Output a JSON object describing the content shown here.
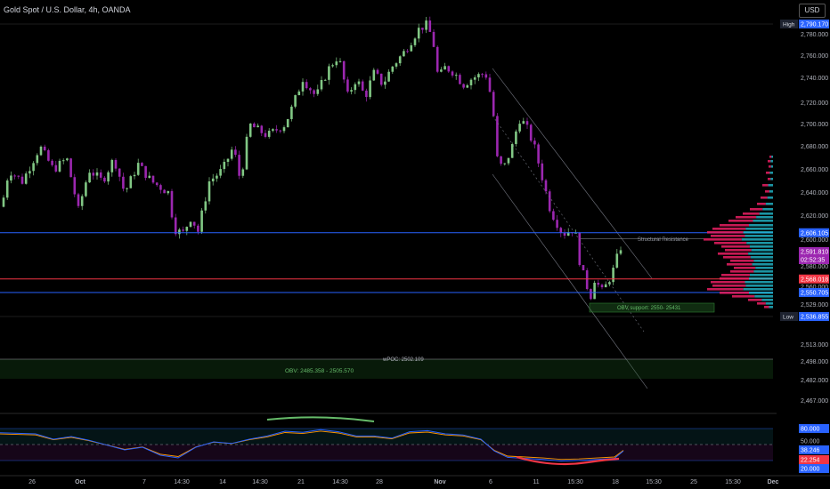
{
  "header": {
    "title": "Gold Spot / U.S. Dollar, 4h, OANDA",
    "currency_button": "USD"
  },
  "chart_data": {
    "type": "candlestick",
    "instrument": "Gold Spot / U.S. Dollar",
    "timeframe": "4h",
    "source": "OANDA",
    "price_axis": {
      "ticks": [
        2780,
        2760,
        2740,
        2720,
        2700,
        2680,
        2660,
        2640,
        2620,
        2600,
        2580,
        2560,
        2529,
        2513,
        2498,
        2482,
        2467
      ],
      "tick_labels": [
        "2,780.000",
        "2,760.000",
        "2,740.000",
        "2,720.000",
        "2,700.000",
        "2,680.000",
        "2,660.000",
        "2,640.000",
        "2,620.000",
        "2,600.000",
        "2,580.000",
        "2,560.000",
        "2,529.000",
        "2,513.000",
        "2,498.000",
        "2,482.000",
        "2,467.000"
      ]
    },
    "time_axis": {
      "labels": [
        "26",
        "Oct",
        "7",
        "14:30",
        "14",
        "14:30",
        "21",
        "14:30",
        "28",
        "Nov",
        "6",
        "11",
        "15:30",
        "18",
        "15:30",
        "25",
        "15:30",
        "Dec"
      ]
    },
    "price_labels": [
      {
        "text": "High",
        "value": "2,790.170",
        "color": "#2962ff",
        "type": "high"
      },
      {
        "text": "",
        "value": "2,606.105",
        "color": "#2962ff",
        "type": "level"
      },
      {
        "text": "",
        "value": "2,591.810",
        "color": "#9c27b0",
        "type": "last"
      },
      {
        "text": "",
        "value": "02:52:35",
        "color": "#9c27b0",
        "type": "countdown"
      },
      {
        "text": "",
        "value": "2,568.018",
        "color": "#f23645",
        "type": "level"
      },
      {
        "text": "",
        "value": "2,550.705",
        "color": "#2962ff",
        "type": "level"
      },
      {
        "text": "Low",
        "value": "2,536.855",
        "color": "#2962ff",
        "type": "low"
      }
    ],
    "horizontal_levels": [
      {
        "price": 2606.105,
        "color": "#2962ff",
        "label": "Structural Resistance"
      },
      {
        "price": 2568.018,
        "color": "#f23645",
        "label": ""
      },
      {
        "price": 2550.705,
        "color": "#2962ff",
        "label": ""
      }
    ],
    "zones": [
      {
        "label": "OBV support: 2550- 25431",
        "color": "#2e7d32"
      },
      {
        "label": "OBV:  2485.358 - 2505.570",
        "color": "#1b5e20"
      }
    ],
    "annotations": [
      {
        "text": "wPOC: 2502.109"
      }
    ],
    "oscillator": {
      "tick_labels": [
        "80.000",
        "50.000",
        "38.246",
        "22.254",
        "20.000"
      ],
      "levels": {
        "upper": 80,
        "mid": 50,
        "lower": 20
      }
    },
    "colors": {
      "up": "#81c784",
      "down": "#9c27b0",
      "background": "#000000",
      "volume_profile_a": "#e91e63",
      "volume_profile_b": "#26c6da"
    }
  }
}
